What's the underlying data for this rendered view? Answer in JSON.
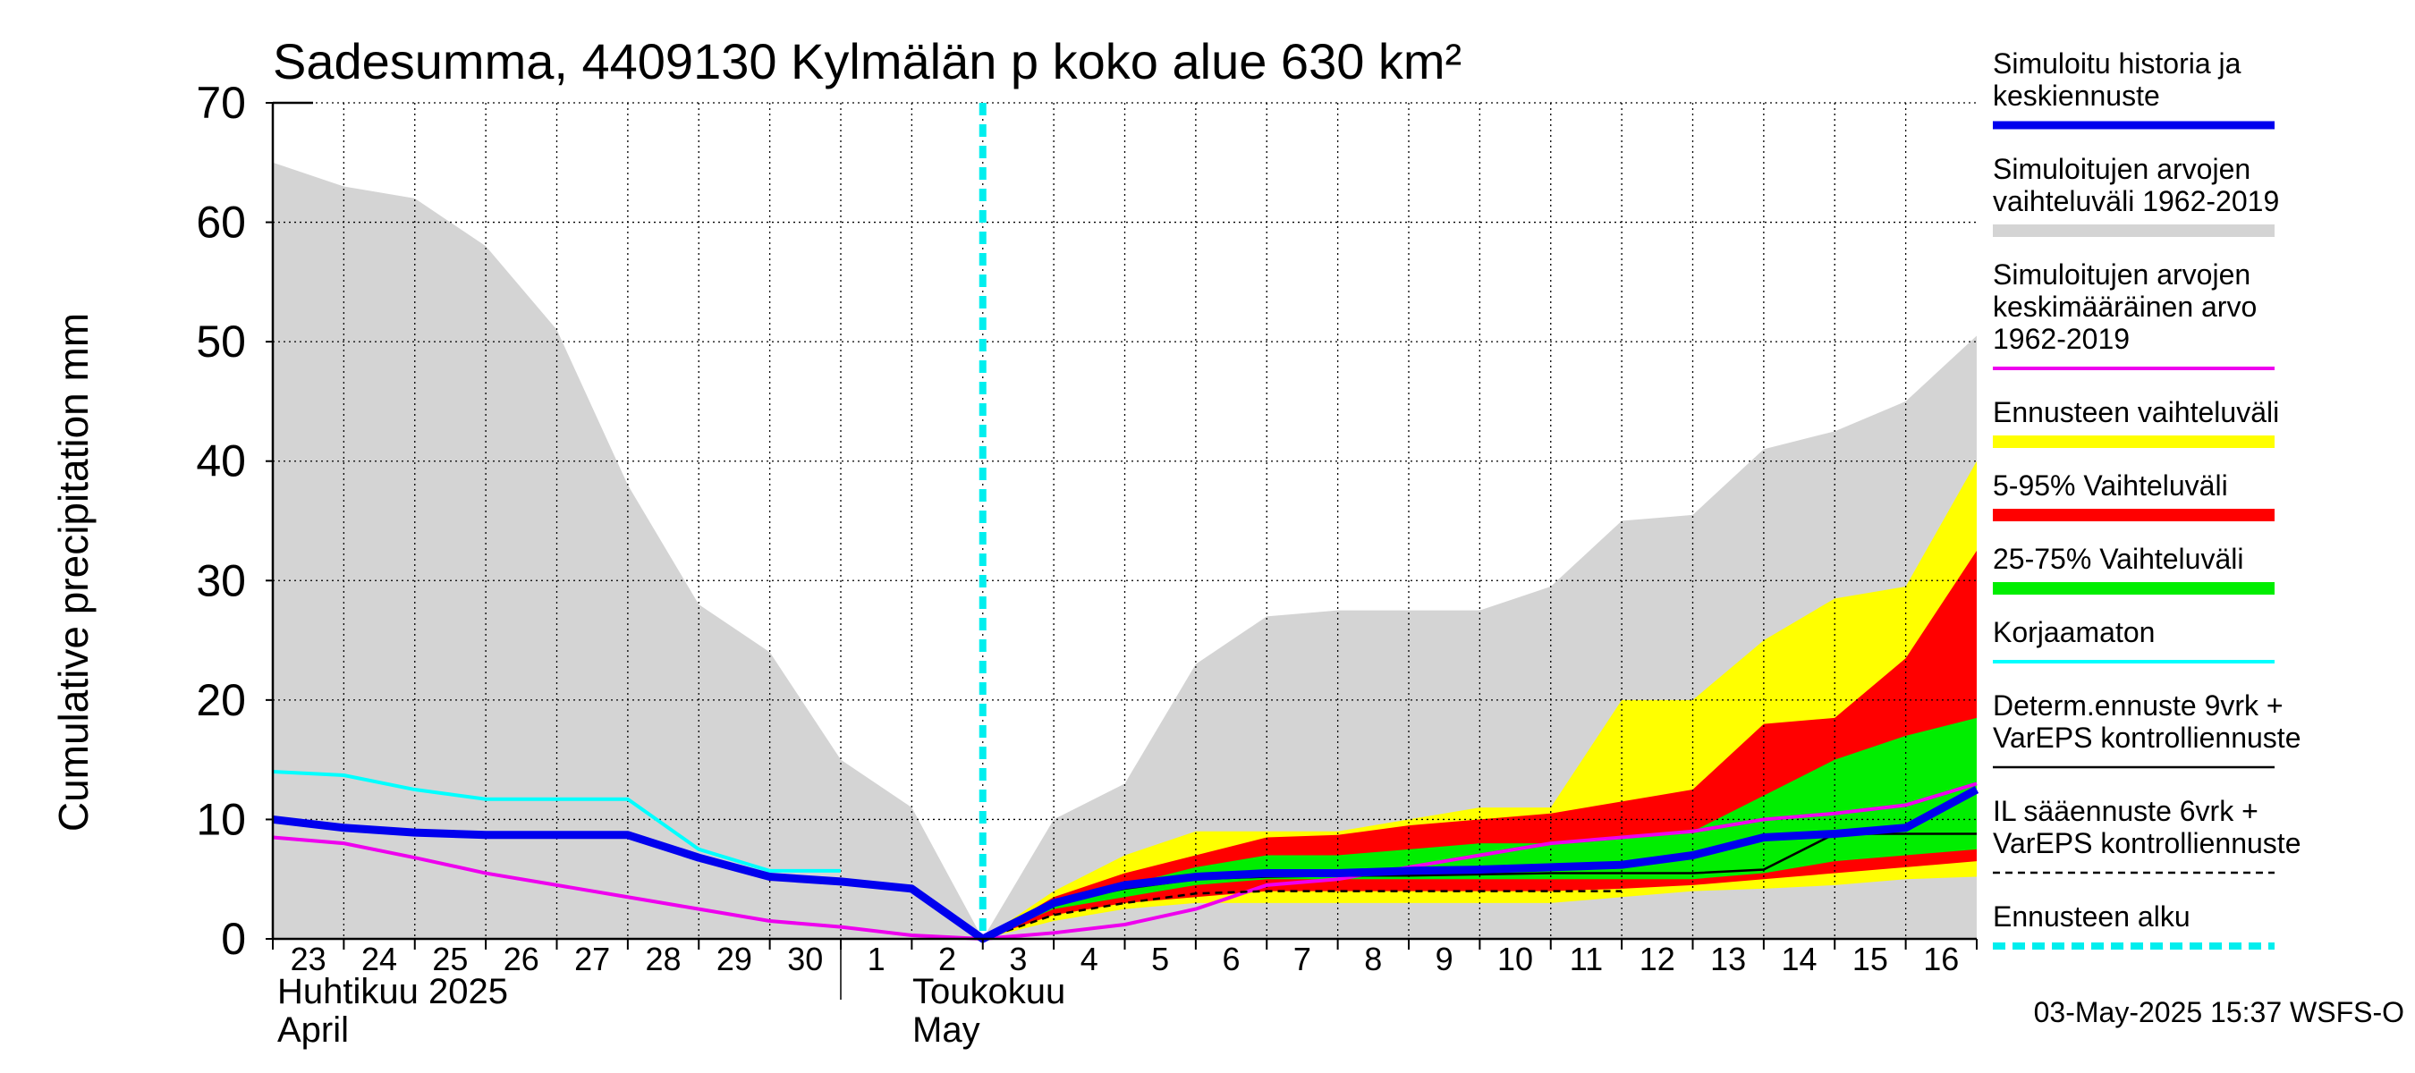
{
  "chart_data": {
    "type": "area",
    "title": "Sadesumma, 4409130 Kylmälän p koko alue 630 km²",
    "ylabel": "Cumulative precipitation   mm",
    "ylim": [
      0,
      70
    ],
    "yticks": [
      0,
      10,
      20,
      30,
      40,
      50,
      60,
      70
    ],
    "x_days": [
      0,
      1,
      2,
      3,
      4,
      5,
      6,
      7,
      8,
      9,
      10,
      11,
      12,
      13,
      14,
      15,
      16,
      17,
      18,
      19,
      20,
      21,
      22,
      23,
      24
    ],
    "x_tick_labels": [
      "23",
      "24",
      "25",
      "26",
      "27",
      "28",
      "29",
      "30",
      "1",
      "2",
      "3",
      "4",
      "5",
      "6",
      "7",
      "8",
      "9",
      "10",
      "11",
      "12",
      "13",
      "14",
      "15",
      "16"
    ],
    "month_labels": [
      {
        "line1": "Huhtikuu  2025",
        "line2": "April"
      },
      {
        "line1": "Toukokuu",
        "line2": "May"
      }
    ],
    "forecast_start_day": 10,
    "series": {
      "hist_range": {
        "name": "Simuloitujen arvojen vaihteluväli 1962-2019",
        "color": "#d4d4d4",
        "upper": [
          65,
          63,
          62,
          58,
          51,
          38,
          28,
          24,
          15,
          11,
          0,
          10,
          13,
          23,
          27,
          27.5,
          27.5,
          27.5,
          29.5,
          35,
          35.5,
          41,
          42.5,
          45,
          50.5
        ],
        "lower": [
          0,
          0,
          0,
          0,
          0,
          0,
          0,
          0,
          0,
          0,
          0,
          0,
          0,
          0,
          0,
          0,
          0,
          0,
          0,
          0,
          0,
          0,
          0,
          0,
          0
        ]
      },
      "ens_range": {
        "name": "Ennusteen vaihteluväli",
        "color": "#ffff00",
        "upper": [
          null,
          null,
          null,
          null,
          null,
          null,
          null,
          null,
          null,
          null,
          0,
          4,
          7,
          9,
          9,
          9,
          10,
          11,
          11,
          20,
          20,
          25,
          28.5,
          29.5,
          40
        ],
        "lower": [
          null,
          null,
          null,
          null,
          null,
          null,
          null,
          null,
          null,
          null,
          0,
          1.5,
          2.5,
          3,
          3,
          3,
          3,
          3,
          3,
          3.5,
          4,
          4.2,
          4.5,
          5,
          5.2
        ]
      },
      "p5_95": {
        "name": "5-95% Vaihteluväli",
        "color": "#ff0000",
        "upper": [
          null,
          null,
          null,
          null,
          null,
          null,
          null,
          null,
          null,
          null,
          0,
          3.5,
          5.5,
          7,
          8.5,
          8.7,
          9.5,
          10,
          10.5,
          11.5,
          12.5,
          18,
          18.5,
          23.5,
          32.5
        ],
        "lower": [
          null,
          null,
          null,
          null,
          null,
          null,
          null,
          null,
          null,
          null,
          0,
          2,
          3,
          3.5,
          4,
          4,
          4,
          4,
          4,
          4.2,
          4.5,
          5,
          5.5,
          6,
          6.5
        ]
      },
      "p25_75": {
        "name": "25-75% Vaihteluväli",
        "color": "#00ee00",
        "upper": [
          null,
          null,
          null,
          null,
          null,
          null,
          null,
          null,
          null,
          null,
          0,
          3,
          4.5,
          6,
          7,
          7,
          7.5,
          8,
          8,
          8.5,
          9,
          12,
          15,
          17,
          18.5
        ],
        "lower": [
          null,
          null,
          null,
          null,
          null,
          null,
          null,
          null,
          null,
          null,
          0,
          2.5,
          3.5,
          4.5,
          5,
          5,
          5,
          5,
          5,
          5,
          5,
          5.5,
          6.5,
          7,
          7.5
        ]
      },
      "hist_mean": {
        "name": "Simuloitujen arvojen keskimääräinen arvo 1962-2019",
        "color": "#ee00ee",
        "values": [
          8.5,
          8,
          6.8,
          5.5,
          4.5,
          3.5,
          2.5,
          1.5,
          1,
          0.3,
          0,
          0.5,
          1.2,
          2.5,
          4.5,
          5,
          6,
          7,
          8,
          8.5,
          9,
          10,
          10.5,
          11.2,
          13
        ]
      },
      "korjaamaton": {
        "name": "Korjaamaton",
        "color": "#00ffff",
        "values": [
          14,
          13.7,
          12.5,
          11.7,
          11.7,
          11.7,
          7.5,
          5.7,
          5.7,
          null,
          null,
          null,
          null,
          null,
          null,
          null,
          null,
          null,
          null,
          null,
          null,
          null,
          null,
          null,
          null
        ]
      },
      "determ": {
        "name": "Determ.ennuste 9vrk + VarEPS kontrolliennuste",
        "color": "#000000",
        "values": [
          null,
          null,
          null,
          null,
          null,
          null,
          null,
          null,
          null,
          null,
          0,
          3,
          4.2,
          5,
          5.2,
          5.3,
          5.3,
          5.4,
          5.5,
          5.5,
          5.5,
          5.8,
          8.8,
          8.8,
          8.8
        ]
      },
      "il_forecast": {
        "name": "IL sääennuste 6vrk  +   VarEPS kontrolliennuste",
        "color": "#000000",
        "values": [
          null,
          null,
          null,
          null,
          null,
          null,
          null,
          null,
          null,
          null,
          0,
          2,
          3,
          3.8,
          4,
          4,
          4,
          4,
          4,
          4,
          null,
          null,
          null,
          null,
          null
        ]
      },
      "sim_history": {
        "name": "Simuloitu historia ja keskiennuste",
        "color": "#0000ee",
        "values": [
          10,
          9.3,
          8.9,
          8.7,
          8.7,
          8.7,
          6.8,
          5.2,
          4.8,
          4.2,
          0,
          3,
          4.5,
          5.2,
          5.5,
          5.5,
          5.7,
          5.8,
          6,
          6.2,
          7,
          8.5,
          8.8,
          9.3,
          12.5
        ]
      }
    },
    "legend": [
      {
        "key": "sim_history",
        "line1": "Simuloitu historia ja",
        "line2": "keskiennuste",
        "line3": ""
      },
      {
        "key": "hist_range",
        "line1": "Simuloitujen arvojen",
        "line2": "vaihteluväli 1962-2019",
        "line3": ""
      },
      {
        "key": "hist_mean",
        "line1": "Simuloitujen arvojen",
        "line2": "keskimääräinen arvo",
        "line3": "   1962-2019"
      },
      {
        "key": "ens_range",
        "line1": "Ennusteen vaihteluväli",
        "line2": "",
        "line3": ""
      },
      {
        "key": "p5_95",
        "line1": "5-95% Vaihteluväli",
        "line2": "",
        "line3": ""
      },
      {
        "key": "p25_75",
        "line1": "25-75% Vaihteluväli",
        "line2": "",
        "line3": ""
      },
      {
        "key": "korjaamaton",
        "line1": "Korjaamaton",
        "line2": "",
        "line3": ""
      },
      {
        "key": "determ",
        "line1": "Determ.ennuste 9vrk +",
        "line2": "VarEPS kontrolliennuste",
        "line3": ""
      },
      {
        "key": "il_forecast",
        "line1": "IL sääennuste 6vrk  +",
        "line2": "  VarEPS kontrolliennuste",
        "line3": ""
      },
      {
        "key": "forecast_start",
        "line1": "Ennusteen alku",
        "line2": "",
        "line3": ""
      }
    ],
    "forecast_start_color": "#00eeee",
    "timestamp": "03-May-2025 15:37 WSFS-O"
  }
}
